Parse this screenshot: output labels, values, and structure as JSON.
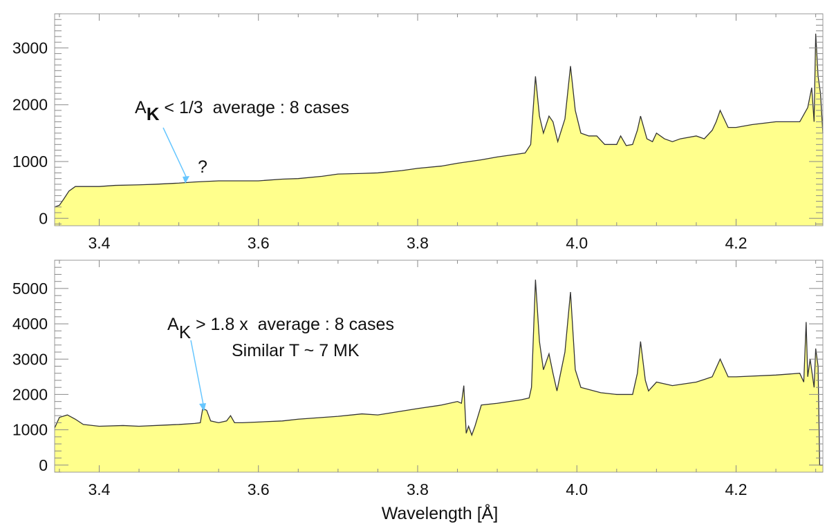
{
  "chart_data": [
    {
      "type": "area",
      "title": "",
      "xlabel": "",
      "ylabel": "",
      "xlim": [
        3.344,
        4.309
      ],
      "ylim": [
        -130,
        3600
      ],
      "xticks": [
        3.4,
        3.6,
        3.8,
        4.0,
        4.2
      ],
      "xtick_labels": [
        "3.4",
        "3.6",
        "3.8",
        "4.0",
        "4.2"
      ],
      "yticks": [
        0,
        1000,
        2000,
        3000
      ],
      "ytick_labels": [
        "0",
        "1000",
        "2000",
        "3000"
      ],
      "fill_color": "#ffff8c",
      "line_color": "#333333",
      "annotation": {
        "main": "A",
        "sub": "K",
        "rest": " < 1/3  average : 8 cases",
        "mark": "?",
        "arrow_color": "#66c6ff",
        "arrow_target": [
          3.515,
          650
        ]
      },
      "series": [
        {
          "name": "A_K < 1/3 average",
          "x": [
            3.344,
            3.35,
            3.355,
            3.362,
            3.37,
            3.38,
            3.4,
            3.42,
            3.45,
            3.47,
            3.5,
            3.52,
            3.55,
            3.58,
            3.6,
            3.63,
            3.65,
            3.68,
            3.7,
            3.73,
            3.75,
            3.78,
            3.8,
            3.83,
            3.85,
            3.88,
            3.9,
            3.92,
            3.935,
            3.942,
            3.948,
            3.953,
            3.958,
            3.965,
            3.97,
            3.976,
            3.985,
            3.992,
            3.998,
            4.005,
            4.015,
            4.025,
            4.035,
            4.05,
            4.055,
            4.062,
            4.07,
            4.076,
            4.08,
            4.088,
            4.095,
            4.1,
            4.11,
            4.12,
            4.13,
            4.15,
            4.16,
            4.17,
            4.175,
            4.18,
            4.19,
            4.2,
            4.22,
            4.25,
            4.28,
            4.29,
            4.295,
            4.298,
            4.3,
            4.303,
            4.306,
            4.309
          ],
          "y": [
            200,
            230,
            330,
            480,
            560,
            560,
            560,
            580,
            590,
            600,
            620,
            640,
            660,
            660,
            660,
            690,
            700,
            740,
            780,
            790,
            800,
            840,
            880,
            920,
            970,
            1030,
            1080,
            1120,
            1150,
            1300,
            2500,
            1800,
            1500,
            1800,
            1700,
            1350,
            1750,
            2680,
            1900,
            1500,
            1450,
            1450,
            1300,
            1300,
            1450,
            1280,
            1300,
            1550,
            1800,
            1400,
            1350,
            1500,
            1400,
            1350,
            1400,
            1450,
            1400,
            1550,
            1700,
            1900,
            1600,
            1600,
            1650,
            1700,
            1700,
            1950,
            2300,
            1700,
            3250,
            2500,
            2200,
            1500
          ]
        }
      ]
    },
    {
      "type": "area",
      "title": "",
      "xlabel": "Wavelength [Å]",
      "ylabel": "",
      "xlim": [
        3.344,
        4.309
      ],
      "ylim": [
        -200,
        5800
      ],
      "xticks": [
        3.4,
        3.6,
        3.8,
        4.0,
        4.2
      ],
      "xtick_labels": [
        "3.4",
        "3.6",
        "3.8",
        "4.0",
        "4.2"
      ],
      "yticks": [
        0,
        1000,
        2000,
        3000,
        4000,
        5000
      ],
      "ytick_labels": [
        "0",
        "1000",
        "2000",
        "3000",
        "4000",
        "5000"
      ],
      "fill_color": "#ffff8c",
      "line_color": "#333333",
      "annotation": {
        "main": "A",
        "sub": "K",
        "rest": " > 1.8 x  average : 8 cases",
        "line2": "Similar T ~ 7 MK",
        "arrow_color": "#66c6ff",
        "arrow_target": [
          3.53,
          1650
        ]
      },
      "series": [
        {
          "name": "A_K > 1.8x average",
          "x": [
            3.344,
            3.35,
            3.36,
            3.37,
            3.38,
            3.4,
            3.43,
            3.45,
            3.48,
            3.5,
            3.52,
            3.527,
            3.53,
            3.535,
            3.54,
            3.55,
            3.56,
            3.565,
            3.57,
            3.58,
            3.6,
            3.63,
            3.65,
            3.7,
            3.73,
            3.75,
            3.8,
            3.83,
            3.85,
            3.855,
            3.858,
            3.861,
            3.864,
            3.868,
            3.872,
            3.88,
            3.9,
            3.93,
            3.94,
            3.943,
            3.948,
            3.953,
            3.958,
            3.965,
            3.97,
            3.975,
            3.985,
            3.992,
            3.998,
            4.005,
            4.03,
            4.05,
            4.07,
            4.076,
            4.08,
            4.086,
            4.09,
            4.1,
            4.12,
            4.15,
            4.17,
            4.18,
            4.19,
            4.2,
            4.25,
            4.28,
            4.285,
            4.288,
            4.29,
            4.293,
            4.298,
            4.3,
            4.303,
            4.305,
            4.309
          ],
          "y": [
            1050,
            1350,
            1420,
            1300,
            1150,
            1100,
            1120,
            1100,
            1130,
            1150,
            1180,
            1200,
            1600,
            1550,
            1250,
            1200,
            1250,
            1400,
            1200,
            1200,
            1220,
            1250,
            1300,
            1380,
            1450,
            1420,
            1600,
            1700,
            1800,
            1750,
            2250,
            900,
            1100,
            850,
            1100,
            1700,
            1750,
            1850,
            1900,
            2200,
            5250,
            3500,
            2700,
            3150,
            2600,
            2100,
            3200,
            4900,
            2700,
            2200,
            2050,
            2000,
            2000,
            2600,
            3500,
            2400,
            2100,
            2350,
            2250,
            2350,
            2500,
            3000,
            2500,
            2500,
            2550,
            2600,
            2350,
            4050,
            2500,
            3000,
            2200,
            3300,
            2800,
            0,
            0
          ]
        }
      ]
    }
  ]
}
